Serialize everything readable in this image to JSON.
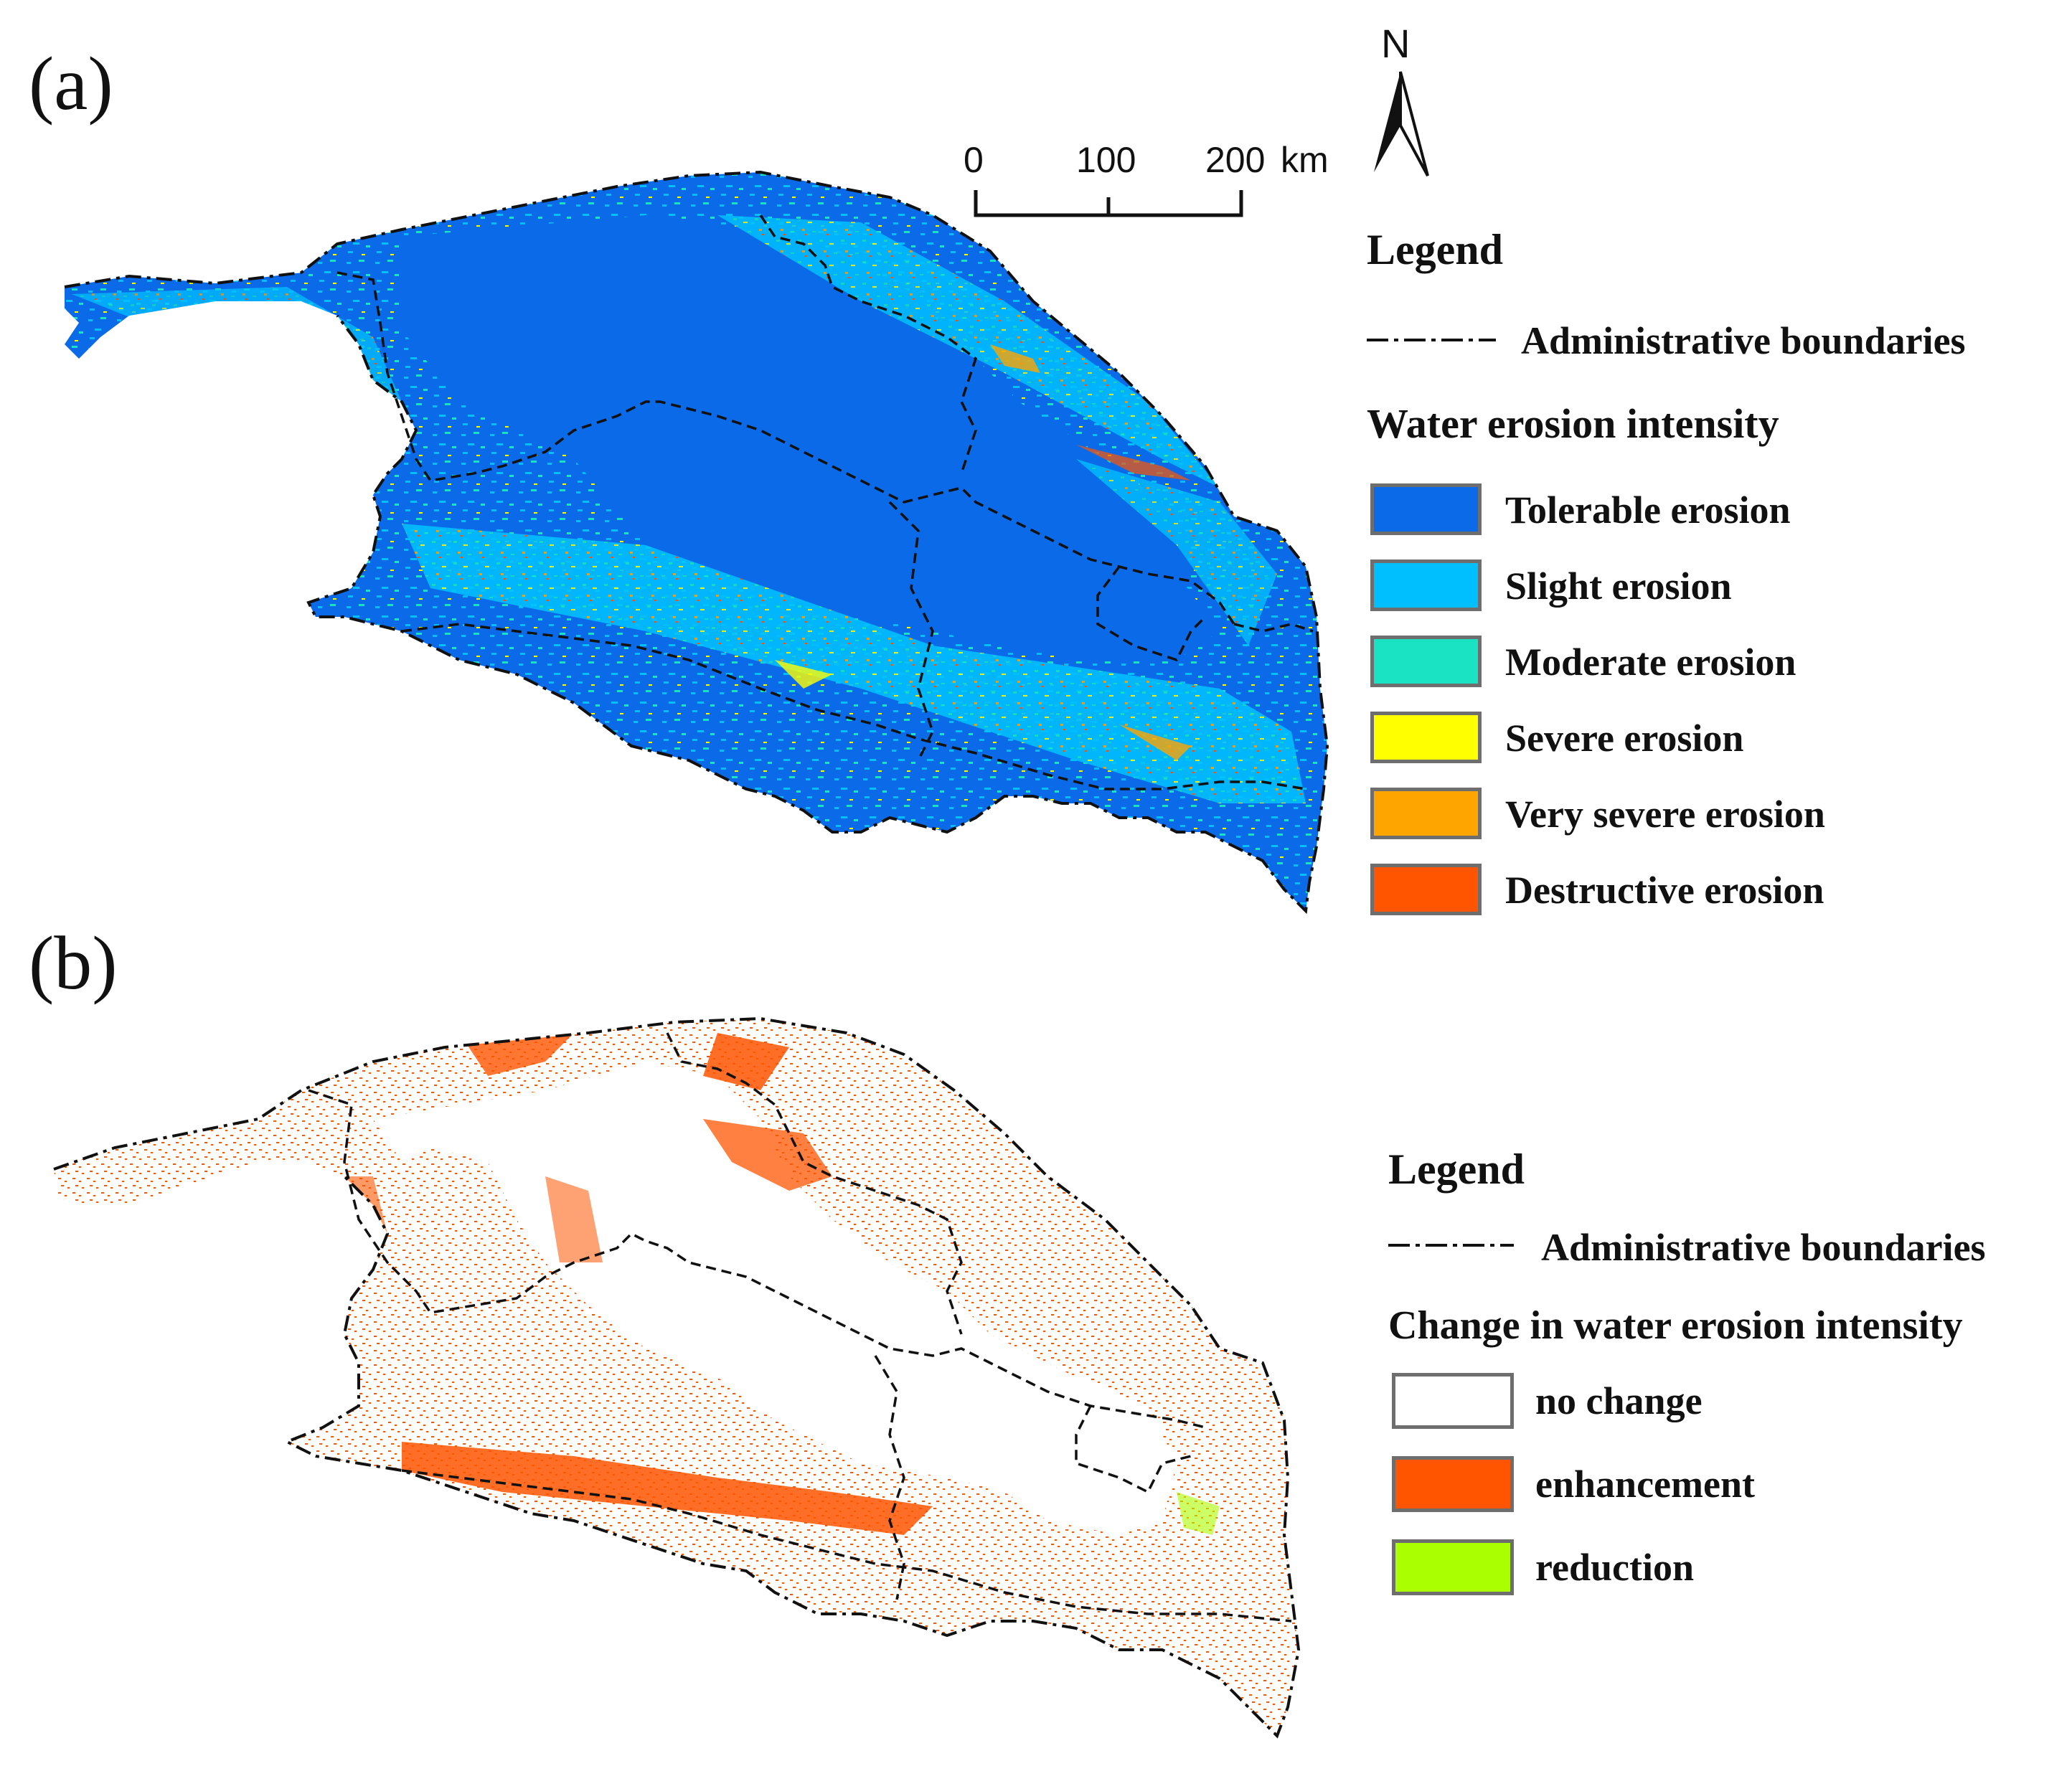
{
  "panel_a": {
    "label": "(a)",
    "scale_bar": {
      "ticks": [
        "0",
        "100",
        "200"
      ],
      "unit": "km"
    },
    "north_arrow": {
      "letter": "N",
      "icon": "north-arrow-icon"
    },
    "legend": {
      "title": "Legend",
      "boundary_label": "Administrative boundaries",
      "subtitle": "Water erosion intensity",
      "classes": [
        {
          "label": "Tolerable erosion",
          "color": "#0a6ae8"
        },
        {
          "label": "Slight erosion",
          "color": "#00bfff"
        },
        {
          "label": "Moderate erosion",
          "color": "#19e3c3"
        },
        {
          "label": "Severe erosion",
          "color": "#ffff00"
        },
        {
          "label": "Very severe erosion",
          "color": "#ffa500"
        },
        {
          "label": "Destructive erosion",
          "color": "#ff5500"
        }
      ]
    }
  },
  "panel_b": {
    "label": "(b)",
    "legend": {
      "title": "Legend",
      "boundary_label": "Administrative boundaries",
      "subtitle": "Change in water erosion intensity",
      "classes": [
        {
          "label": "no change",
          "color": "#ffffff"
        },
        {
          "label": "enhancement",
          "color": "#ff5500"
        },
        {
          "label": "reduction",
          "color": "#aaff00"
        }
      ]
    }
  }
}
